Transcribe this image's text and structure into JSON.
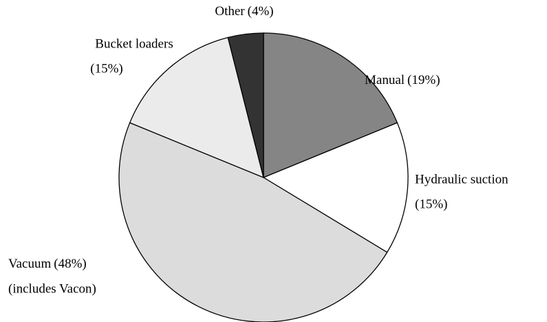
{
  "chart_data": {
    "type": "pie",
    "categories": [
      "Manual",
      "Hydraulic suction",
      "Vacuum",
      "Bucket loaders",
      "Other"
    ],
    "values": [
      19,
      15,
      48,
      15,
      4
    ],
    "value_labels": [
      "(19%)",
      "(15%)",
      "(48%)",
      "(15%)",
      "(4%)"
    ],
    "colors": [
      "#858585",
      "#ffffff",
      "#dcdcdc",
      "#ebebeb",
      "#333333"
    ],
    "annotations": [
      {
        "text": "(includes Vacon)"
      }
    ]
  }
}
